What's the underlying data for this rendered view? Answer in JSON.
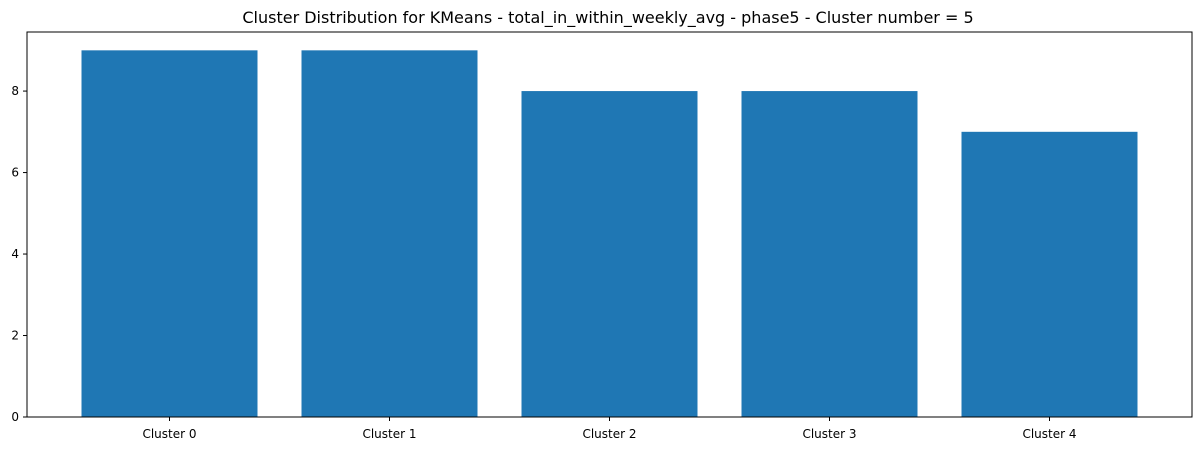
{
  "chart_data": {
    "type": "bar",
    "title": "Cluster Distribution for KMeans - total_in_within_weekly_avg - phase5 - Cluster number = 5",
    "xlabel": "",
    "ylabel": "",
    "categories": [
      "Cluster 0",
      "Cluster 1",
      "Cluster 2",
      "Cluster 3",
      "Cluster 4"
    ],
    "values": [
      9,
      9,
      8,
      8,
      7
    ],
    "ylim": [
      0,
      9.45
    ],
    "yticks": [
      0,
      2,
      4,
      6,
      8
    ],
    "grid": false,
    "legend": "none",
    "bar_color": "#1f77b4"
  }
}
